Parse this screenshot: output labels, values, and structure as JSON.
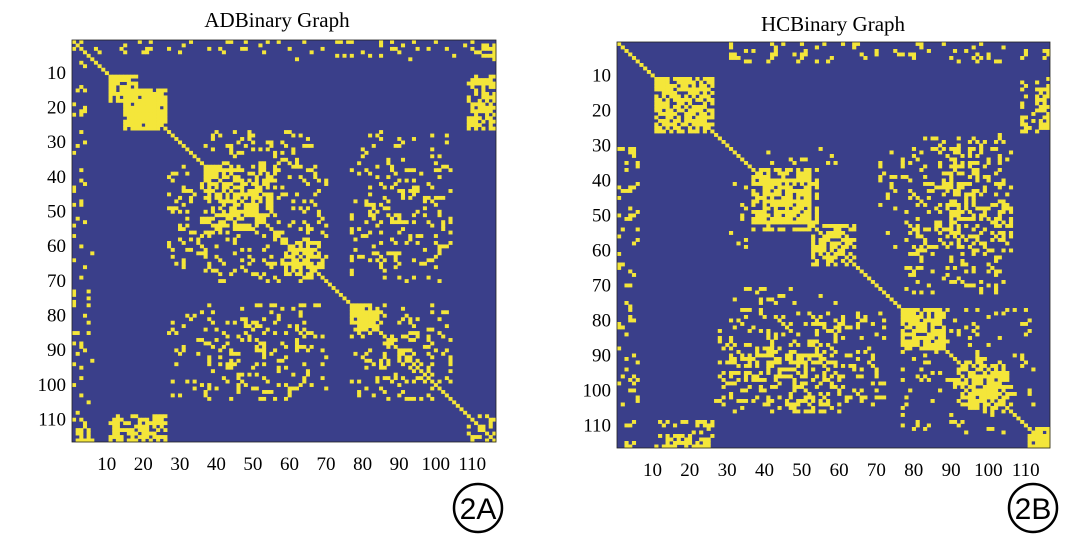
{
  "colors": {
    "background": "#3a3f8a",
    "connection": "#f4e63a",
    "frame": "#222222",
    "badge": "#000000"
  },
  "chart_data": [
    {
      "type": "heatmap",
      "title": "ADBinary Graph",
      "badge": "2A",
      "matrix_size": 116,
      "value_range": [
        0,
        1
      ],
      "x_ticks": [
        10,
        20,
        30,
        40,
        50,
        60,
        70,
        80,
        90,
        100,
        110
      ],
      "y_ticks": [
        10,
        20,
        30,
        40,
        50,
        60,
        70,
        80,
        90,
        100,
        110
      ],
      "x_tick_labels": [
        "10",
        "20",
        "30",
        "40",
        "50",
        "60",
        "70",
        "80",
        "90",
        "100",
        "110"
      ],
      "y_tick_labels": [
        "10",
        "20",
        "30",
        "40",
        "50",
        "60",
        "70",
        "80",
        "90",
        "100",
        "110"
      ],
      "dense_blocks": [
        {
          "rows": [
            10,
            18
          ],
          "cols": [
            10,
            18
          ],
          "density": 0.55
        },
        {
          "rows": [
            14,
            24
          ],
          "cols": [
            16,
            26
          ],
          "density": 0.85
        },
        {
          "rows": [
            1,
            6
          ],
          "cols": [
            110,
            116
          ],
          "density": 0.4
        },
        {
          "rows": [
            12,
            24
          ],
          "cols": [
            112,
            116
          ],
          "density": 0.5
        },
        {
          "rows": [
            36,
            56
          ],
          "cols": [
            36,
            52
          ],
          "density": 0.35
        },
        {
          "rows": [
            58,
            66
          ],
          "cols": [
            60,
            68
          ],
          "density": 0.45
        },
        {
          "rows": [
            76,
            84
          ],
          "cols": [
            76,
            86
          ],
          "density": 0.45
        },
        {
          "rows": [
            108,
            116
          ],
          "cols": [
            10,
            26
          ],
          "density": 0.5
        },
        {
          "rows": [
            108,
            116
          ],
          "cols": [
            110,
            116
          ],
          "density": 0.5
        }
      ],
      "sparse_blocks": [
        {
          "rows": [
            0,
            4
          ],
          "cols": [
            20,
            110
          ],
          "density": 0.06
        },
        {
          "rows": [
            0,
            30
          ],
          "cols": [
            0,
            4
          ],
          "density": 0.1
        },
        {
          "rows": [
            30,
            36
          ],
          "cols": [
            34,
            64
          ],
          "density": 0.12
        },
        {
          "rows": [
            30,
            60
          ],
          "cols": [
            0,
            4
          ],
          "density": 0.1
        },
        {
          "rows": [
            36,
            66
          ],
          "cols": [
            26,
            36
          ],
          "density": 0.12
        },
        {
          "rows": [
            36,
            66
          ],
          "cols": [
            52,
            70
          ],
          "density": 0.12
        },
        {
          "rows": [
            36,
            66
          ],
          "cols": [
            80,
            104
          ],
          "density": 0.1
        },
        {
          "rows": [
            60,
            116
          ],
          "cols": [
            0,
            6
          ],
          "density": 0.08
        },
        {
          "rows": [
            76,
            104
          ],
          "cols": [
            26,
            70
          ],
          "density": 0.1
        },
        {
          "rows": [
            76,
            104
          ],
          "cols": [
            86,
            104
          ],
          "density": 0.12
        }
      ]
    },
    {
      "type": "heatmap",
      "title": "HCBinary Graph",
      "badge": "2B",
      "matrix_size": 116,
      "value_range": [
        0,
        1
      ],
      "x_ticks": [
        10,
        20,
        30,
        40,
        50,
        60,
        70,
        80,
        90,
        100,
        110
      ],
      "y_ticks": [
        10,
        20,
        30,
        40,
        50,
        60,
        70,
        80,
        90,
        100,
        110
      ],
      "x_tick_labels": [
        "10",
        "20",
        "30",
        "40",
        "50",
        "60",
        "70",
        "80",
        "90",
        "100",
        "110"
      ],
      "y_tick_labels": [
        "10",
        "20",
        "30",
        "40",
        "50",
        "60",
        "70",
        "80",
        "90",
        "100",
        "110"
      ],
      "dense_blocks": [
        {
          "rows": [
            10,
            24
          ],
          "cols": [
            10,
            26
          ],
          "density": 0.55
        },
        {
          "rows": [
            12,
            26
          ],
          "cols": [
            112,
            116
          ],
          "density": 0.45
        },
        {
          "rows": [
            36,
            54
          ],
          "cols": [
            36,
            52
          ],
          "density": 0.45
        },
        {
          "rows": [
            54,
            64
          ],
          "cols": [
            52,
            62
          ],
          "density": 0.4
        },
        {
          "rows": [
            76,
            88
          ],
          "cols": [
            76,
            88
          ],
          "density": 0.5
        },
        {
          "rows": [
            92,
            104
          ],
          "cols": [
            92,
            106
          ],
          "density": 0.4
        },
        {
          "rows": [
            108,
            116
          ],
          "cols": [
            10,
            26
          ],
          "density": 0.35
        },
        {
          "rows": [
            110,
            116
          ],
          "cols": [
            110,
            116
          ],
          "density": 0.6
        }
      ],
      "sparse_blocks": [
        {
          "rows": [
            0,
            6
          ],
          "cols": [
            26,
            116
          ],
          "density": 0.06
        },
        {
          "rows": [
            30,
            60
          ],
          "cols": [
            0,
            6
          ],
          "density": 0.1
        },
        {
          "rows": [
            30,
            60
          ],
          "cols": [
            70,
            106
          ],
          "density": 0.12
        },
        {
          "rows": [
            30,
            40
          ],
          "cols": [
            40,
            60
          ],
          "density": 0.1
        },
        {
          "rows": [
            60,
            116
          ],
          "cols": [
            0,
            6
          ],
          "density": 0.07
        },
        {
          "rows": [
            76,
            104
          ],
          "cols": [
            26,
            72
          ],
          "density": 0.15
        },
        {
          "rows": [
            76,
            104
          ],
          "cols": [
            88,
            112
          ],
          "density": 0.12
        },
        {
          "rows": [
            86,
            106
          ],
          "cols": [
            40,
            56
          ],
          "density": 0.18
        }
      ]
    }
  ]
}
